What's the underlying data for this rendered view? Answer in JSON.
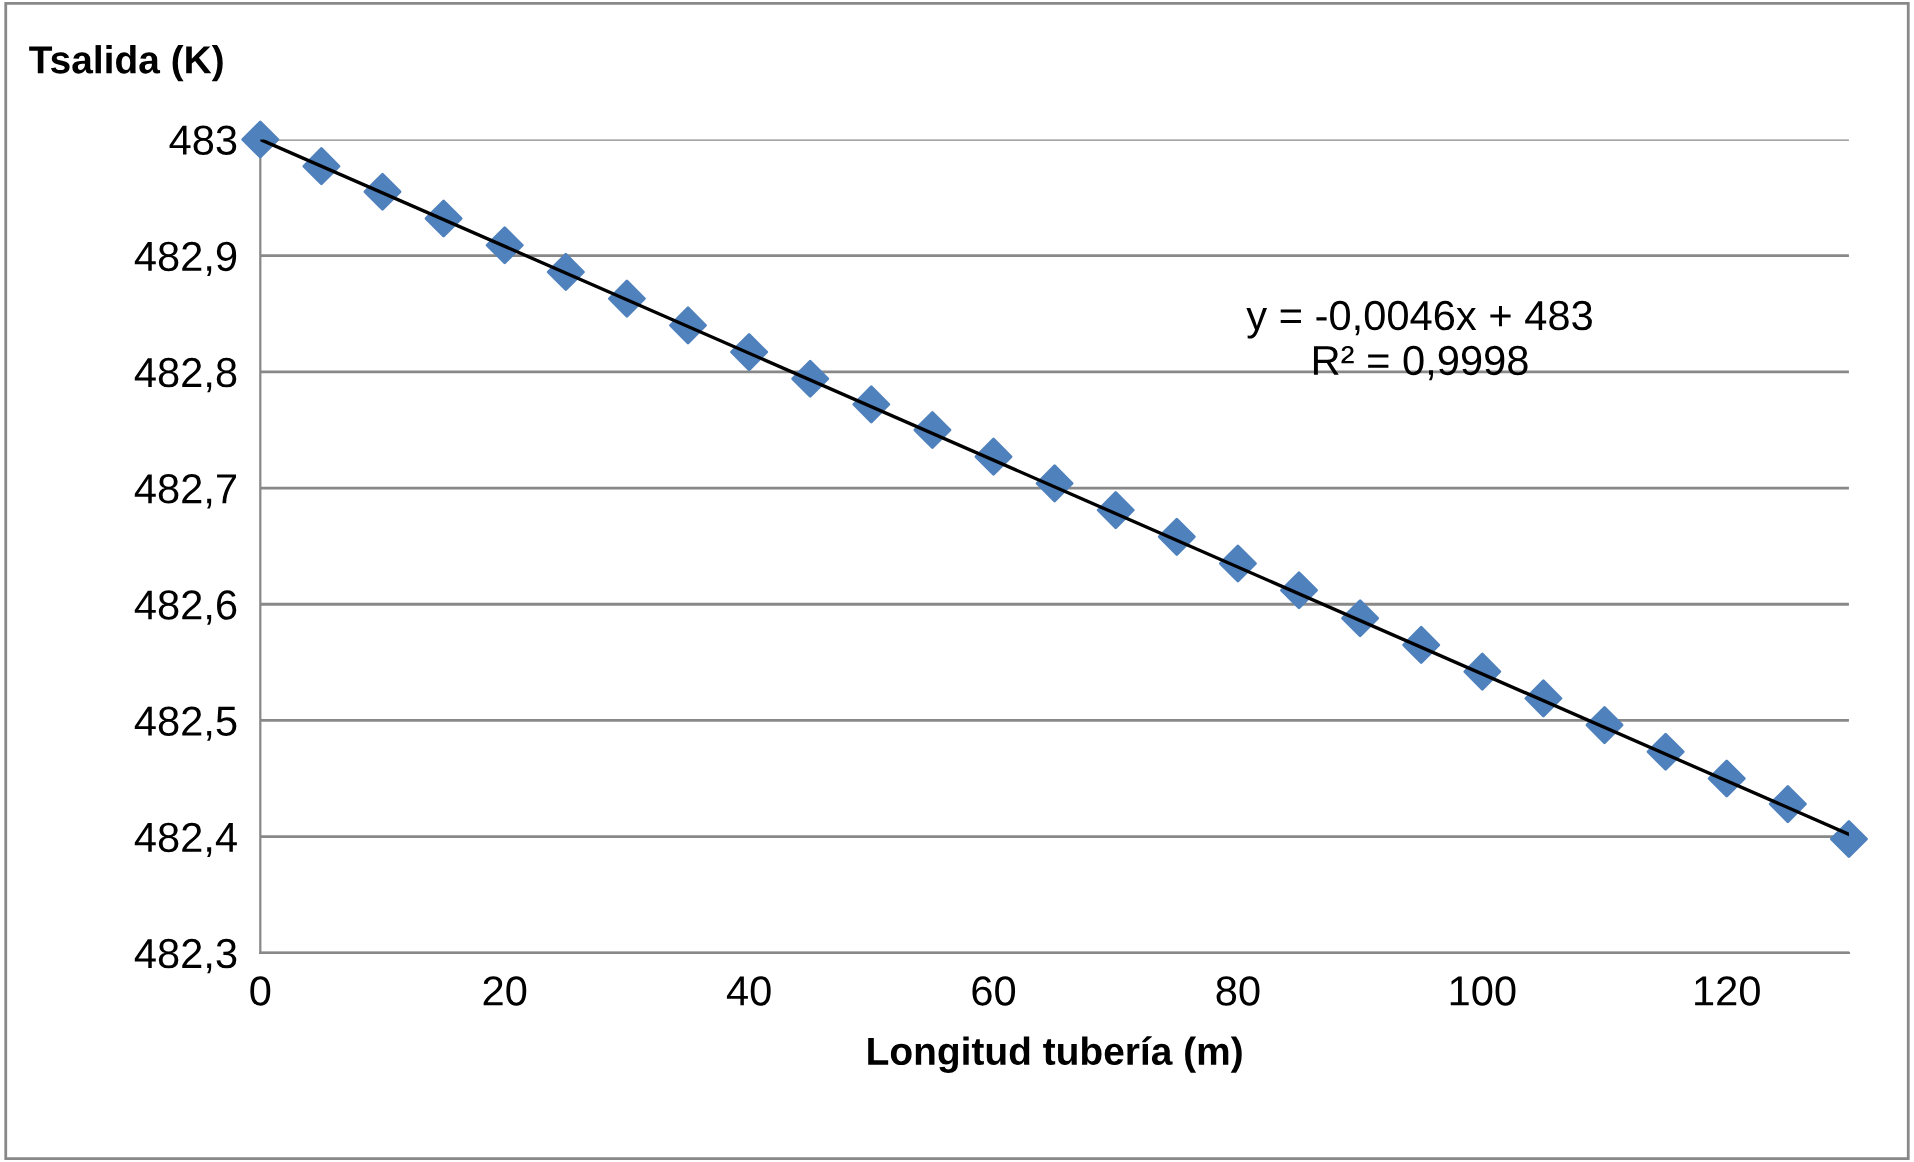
{
  "chart_data": {
    "type": "scatter",
    "xlabel": "Longitud tubería (m)",
    "ylabel": "Tsalida (K)",
    "xlim": [
      0,
      130
    ],
    "xticks": [
      0,
      20,
      40,
      60,
      80,
      100,
      120
    ],
    "ylim": [
      482.3,
      483
    ],
    "yticks": [
      {
        "value": 482.3,
        "label": "482,3"
      },
      {
        "value": 482.4,
        "label": "482,4"
      },
      {
        "value": 482.5,
        "label": "482,5"
      },
      {
        "value": 482.6,
        "label": "482,6"
      },
      {
        "value": 482.7,
        "label": "482,7"
      },
      {
        "value": 482.8,
        "label": "482,8"
      },
      {
        "value": 482.9,
        "label": "482,9"
      },
      {
        "value": 483,
        "label": "483"
      }
    ],
    "grid": "y",
    "series": [
      {
        "marker": "diamond",
        "color": "#4f81bd",
        "x": [
          0,
          5,
          10,
          15,
          20,
          25,
          30,
          35,
          40,
          45,
          50,
          55,
          60,
          65,
          70,
          75,
          80,
          85,
          90,
          95,
          100,
          105,
          110,
          115,
          120,
          125,
          130
        ],
        "values": [
          483,
          482.977,
          482.955,
          482.932,
          482.909,
          482.886,
          482.863,
          482.84,
          482.817,
          482.794,
          482.772,
          482.75,
          482.727,
          482.704,
          482.681,
          482.658,
          482.635,
          482.612,
          482.588,
          482.565,
          482.542,
          482.519,
          482.496,
          482.473,
          482.45,
          482.428,
          482.398
        ]
      },
      {
        "type": "line",
        "marker": "none",
        "color": "#000000",
        "x": [
          0,
          130
        ],
        "values": [
          483,
          482.402
        ]
      }
    ],
    "annotations": [
      "y = -0,0046x + 483\nR² = 0,9998"
    ]
  }
}
